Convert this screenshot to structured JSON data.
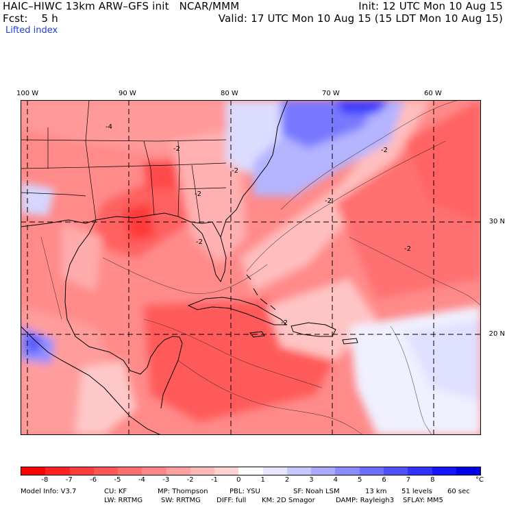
{
  "header": {
    "title": "HAIC–HIWC 13km ARW–GFS init   NCAR/MMM",
    "init": "Init: 12 UTC Mon 10 Aug 15",
    "fcst": "Fcst:    5 h",
    "valid": "Valid: 17 UTC Mon 10 Aug 15 (15 LDT Mon 10 Aug 15)",
    "field": "Lifted index"
  },
  "map": {
    "longitude_labels": [
      "100 W",
      "90 W",
      "80 W",
      "70 W",
      "60 W"
    ],
    "latitude_labels": [
      "30 N",
      "20 N"
    ],
    "contour_labels": [
      "-4",
      "-2",
      "-2",
      "-2",
      "-2",
      "-2",
      "-2",
      "-2",
      "-2"
    ]
  },
  "colorbar": {
    "labels": [
      "-8",
      "-7",
      "-6",
      "-5",
      "-4",
      "-3",
      "-2",
      "-1",
      "0",
      "1",
      "2",
      "3",
      "4",
      "5",
      "6",
      "7",
      "8"
    ],
    "unit": "°C",
    "colors": [
      "#ff0000",
      "#ff2020",
      "#ff3c3c",
      "#ff5555",
      "#ff6e6e",
      "#ff8787",
      "#ffa0a0",
      "#ffb9b9",
      "#ffd2d2",
      "#ffffff",
      "#e6e6ff",
      "#c8c8ff",
      "#aaaaff",
      "#8c8cff",
      "#6e6eff",
      "#5050ff",
      "#3232ff",
      "#1414ff",
      "#0000e6"
    ]
  },
  "model_info": {
    "line1": [
      "Model Info: V3.7",
      "CU: KF",
      "MP: Thompson",
      "PBL: YSU",
      "SF: Noah LSM",
      "13 km",
      "51 levels",
      "60 sec"
    ],
    "line2": [
      "LW: RRTMG",
      "SW: RRTMG",
      "DIFF: full",
      "KM: 2D Smagor",
      "DAMP: Rayleigh3",
      "SFLAY: MM5"
    ]
  }
}
